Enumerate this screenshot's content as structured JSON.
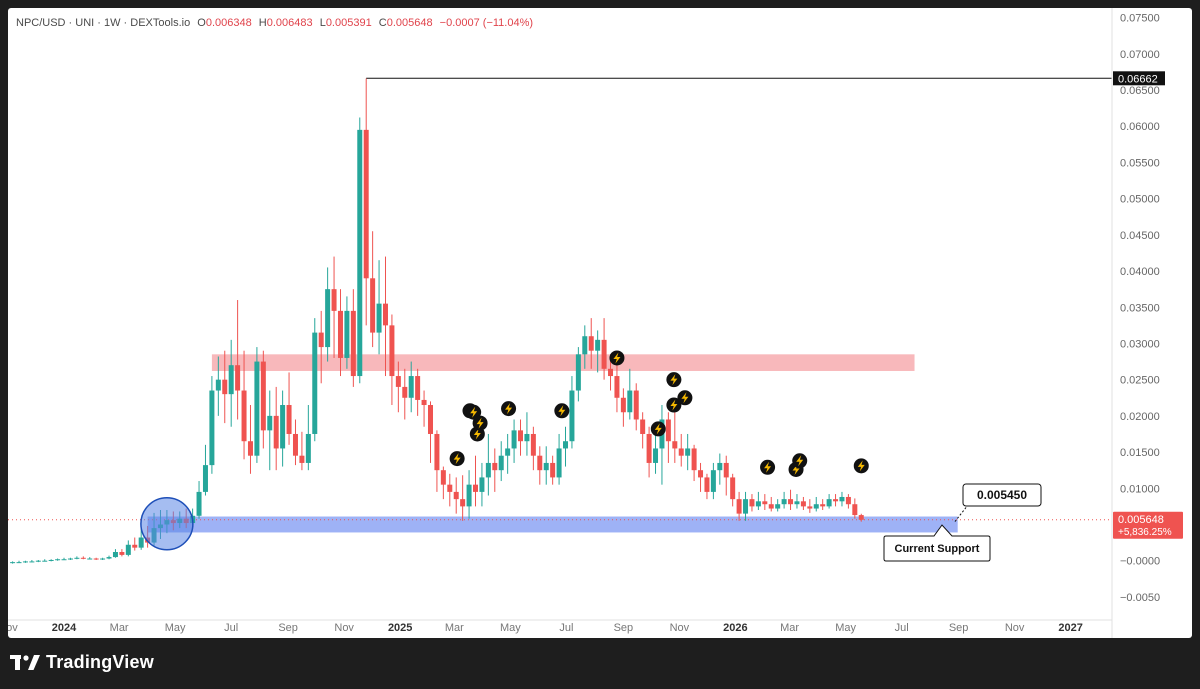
{
  "legend": {
    "symbol": "NPC/USD · UNI · 1W · DEXTools.io",
    "open_label": "O",
    "open": "0.006348",
    "high_label": "H",
    "high": "0.006483",
    "low_label": "L",
    "low": "0.005391",
    "close_label": "C",
    "close": "0.005648",
    "change": "−0.0007 (−11.04%)"
  },
  "brand": {
    "name": "TradingView",
    "logo_text": "TV"
  },
  "colors": {
    "up": "#26a69a",
    "down": "#ef5350",
    "resistance_zone": "#f7b0b4",
    "support_zone": "#93aaf5",
    "circle": "#5b86e5"
  },
  "chart_data": {
    "type": "candlestick",
    "interval": "1W",
    "y_scale": "linear",
    "ylim": [
      -0.0075,
      0.0755
    ],
    "y_ticks": [
      "0.07500",
      "0.07000",
      "0.06500",
      "0.06000",
      "0.05500",
      "0.05000",
      "0.04500",
      "0.04000",
      "0.03500",
      "0.03000",
      "0.02500",
      "0.02000",
      "0.01500",
      "0.01000",
      "−0.0000",
      "−0.0050"
    ],
    "y_tick_values": [
      0.075,
      0.07,
      0.065,
      0.06,
      0.055,
      0.05,
      0.045,
      0.04,
      0.035,
      0.03,
      0.025,
      0.02,
      0.015,
      0.01,
      0.0,
      -0.005
    ],
    "x_start_date": "2023-11-01",
    "x_end_date": "2027-02-15",
    "x_ticks": [
      {
        "label": "Nov",
        "date": "2023-11-01"
      },
      {
        "label": "2024",
        "date": "2024-01-01"
      },
      {
        "label": "Mar",
        "date": "2024-03-01"
      },
      {
        "label": "May",
        "date": "2024-05-01"
      },
      {
        "label": "Jul",
        "date": "2024-07-01"
      },
      {
        "label": "Sep",
        "date": "2024-09-01"
      },
      {
        "label": "Nov",
        "date": "2024-11-01"
      },
      {
        "label": "2025",
        "date": "2025-01-01"
      },
      {
        "label": "Mar",
        "date": "2025-03-01"
      },
      {
        "label": "May",
        "date": "2025-05-01"
      },
      {
        "label": "Jul",
        "date": "2025-07-01"
      },
      {
        "label": "Sep",
        "date": "2025-09-01"
      },
      {
        "label": "Nov",
        "date": "2025-11-01"
      },
      {
        "label": "2026",
        "date": "2026-01-01"
      },
      {
        "label": "Mar",
        "date": "2026-03-01"
      },
      {
        "label": "May",
        "date": "2026-05-01"
      },
      {
        "label": "Jul",
        "date": "2026-07-01"
      },
      {
        "label": "Sep",
        "date": "2026-09-01"
      },
      {
        "label": "Nov",
        "date": "2026-11-01"
      },
      {
        "label": "2027",
        "date": "2027-01-01"
      }
    ],
    "candles": [
      [
        "2023-11-06",
        -0.0003,
        -0.0002,
        -0.0001,
        -0.0004
      ],
      [
        "2023-11-13",
        -0.0002,
        -0.0002,
        0.0,
        -0.0003
      ],
      [
        "2023-11-20",
        -0.0002,
        -0.0001,
        0.0,
        -0.0003
      ],
      [
        "2023-11-27",
        -0.0001,
        -0.0001,
        0.0001,
        -0.0002
      ],
      [
        "2023-12-04",
        -0.0001,
        0.0,
        0.0001,
        -0.0002
      ],
      [
        "2023-12-11",
        0.0,
        0.0,
        0.0002,
        -0.0001
      ],
      [
        "2023-12-18",
        0.0,
        0.0001,
        0.0002,
        -0.0001
      ],
      [
        "2023-12-25",
        0.0001,
        0.0002,
        0.0003,
        0.0
      ],
      [
        "2024-01-01",
        0.0002,
        0.0002,
        0.0004,
        0.0001
      ],
      [
        "2024-01-08",
        0.0002,
        0.0003,
        0.0004,
        0.0001
      ],
      [
        "2024-01-15",
        0.0003,
        0.0004,
        0.0006,
        0.0002
      ],
      [
        "2024-01-22",
        0.0004,
        0.0003,
        0.0006,
        0.0002
      ],
      [
        "2024-01-29",
        0.0003,
        0.0003,
        0.0005,
        0.0002
      ],
      [
        "2024-02-05",
        0.0003,
        0.0002,
        0.0004,
        0.0001
      ],
      [
        "2024-02-12",
        0.0002,
        0.0003,
        0.0004,
        0.0001
      ],
      [
        "2024-02-19",
        0.0003,
        0.0005,
        0.0007,
        0.0002
      ],
      [
        "2024-02-26",
        0.0005,
        0.0012,
        0.0016,
        0.0004
      ],
      [
        "2024-03-04",
        0.0012,
        0.0008,
        0.0016,
        0.0006
      ],
      [
        "2024-03-11",
        0.0008,
        0.0022,
        0.0028,
        0.0006
      ],
      [
        "2024-03-18",
        0.0022,
        0.0018,
        0.0032,
        0.0014
      ],
      [
        "2024-03-25",
        0.0018,
        0.0032,
        0.0045,
        0.0015
      ],
      [
        "2024-04-01",
        0.0032,
        0.0025,
        0.0048,
        0.0018
      ],
      [
        "2024-04-08",
        0.0025,
        0.0045,
        0.0066,
        0.002
      ],
      [
        "2024-04-15",
        0.0045,
        0.005,
        0.007,
        0.003
      ],
      [
        "2024-04-22",
        0.005,
        0.0056,
        0.007,
        0.0038
      ],
      [
        "2024-04-29",
        0.0056,
        0.0052,
        0.0068,
        0.0042
      ],
      [
        "2024-05-06",
        0.0052,
        0.0058,
        0.0068,
        0.0045
      ],
      [
        "2024-05-13",
        0.0058,
        0.0052,
        0.0072,
        0.0045
      ],
      [
        "2024-05-20",
        0.0052,
        0.0062,
        0.0072,
        0.005
      ],
      [
        "2024-05-27",
        0.0062,
        0.0095,
        0.011,
        0.0058
      ],
      [
        "2024-06-03",
        0.0095,
        0.0132,
        0.016,
        0.009
      ],
      [
        "2024-06-10",
        0.0132,
        0.0235,
        0.0255,
        0.012
      ],
      [
        "2024-06-17",
        0.0235,
        0.025,
        0.0282,
        0.02
      ],
      [
        "2024-06-24",
        0.025,
        0.023,
        0.029,
        0.019
      ],
      [
        "2024-07-01",
        0.023,
        0.027,
        0.0305,
        0.0185
      ],
      [
        "2024-07-08",
        0.027,
        0.0235,
        0.036,
        0.0195
      ],
      [
        "2024-07-15",
        0.0235,
        0.0165,
        0.029,
        0.014
      ],
      [
        "2024-07-22",
        0.0165,
        0.0145,
        0.0215,
        0.012
      ],
      [
        "2024-07-29",
        0.0145,
        0.0275,
        0.0295,
        0.0135
      ],
      [
        "2024-08-05",
        0.0275,
        0.018,
        0.029,
        0.0155
      ],
      [
        "2024-08-12",
        0.018,
        0.02,
        0.0235,
        0.0125
      ],
      [
        "2024-08-19",
        0.02,
        0.0155,
        0.024,
        0.0125
      ],
      [
        "2024-08-26",
        0.0155,
        0.0215,
        0.0235,
        0.013
      ],
      [
        "2024-09-02",
        0.0215,
        0.0175,
        0.026,
        0.016
      ],
      [
        "2024-09-09",
        0.0175,
        0.0145,
        0.0195,
        0.0132
      ],
      [
        "2024-09-16",
        0.0145,
        0.0135,
        0.0178,
        0.0125
      ],
      [
        "2024-09-23",
        0.0135,
        0.0175,
        0.0215,
        0.0125
      ],
      [
        "2024-09-30",
        0.0175,
        0.0315,
        0.0335,
        0.0165
      ],
      [
        "2024-10-07",
        0.0315,
        0.0295,
        0.0345,
        0.0245
      ],
      [
        "2024-10-14",
        0.0295,
        0.0375,
        0.0405,
        0.0275
      ],
      [
        "2024-10-21",
        0.0375,
        0.0345,
        0.042,
        0.028
      ],
      [
        "2024-10-28",
        0.0345,
        0.028,
        0.0375,
        0.0255
      ],
      [
        "2024-11-04",
        0.028,
        0.0345,
        0.0365,
        0.0265
      ],
      [
        "2024-11-11",
        0.0345,
        0.0255,
        0.0375,
        0.024
      ],
      [
        "2024-11-18",
        0.0255,
        0.0595,
        0.0612,
        0.0245
      ],
      [
        "2024-11-25",
        0.0595,
        0.039,
        0.0666,
        0.0325
      ],
      [
        "2024-12-02",
        0.039,
        0.0315,
        0.0455,
        0.0295
      ],
      [
        "2024-12-09",
        0.0315,
        0.0355,
        0.0415,
        0.0285
      ],
      [
        "2024-12-16",
        0.0355,
        0.0325,
        0.042,
        0.0255
      ],
      [
        "2024-12-23",
        0.0325,
        0.0255,
        0.034,
        0.0215
      ],
      [
        "2024-12-30",
        0.0255,
        0.024,
        0.0275,
        0.0205
      ],
      [
        "2025-01-06",
        0.024,
        0.0225,
        0.0265,
        0.0195
      ],
      [
        "2025-01-13",
        0.0225,
        0.0255,
        0.0275,
        0.0205
      ],
      [
        "2025-01-20",
        0.0255,
        0.0222,
        0.0265,
        0.02
      ],
      [
        "2025-01-27",
        0.0222,
        0.0215,
        0.0235,
        0.0185
      ],
      [
        "2025-02-03",
        0.0215,
        0.0175,
        0.022,
        0.0135
      ],
      [
        "2025-02-10",
        0.0175,
        0.0125,
        0.018,
        0.0095
      ],
      [
        "2025-02-17",
        0.0125,
        0.0105,
        0.013,
        0.0085
      ],
      [
        "2025-02-24",
        0.0105,
        0.0095,
        0.012,
        0.0075
      ],
      [
        "2025-03-03",
        0.0095,
        0.0085,
        0.0115,
        0.0065
      ],
      [
        "2025-03-10",
        0.0085,
        0.0075,
        0.0118,
        0.0055
      ],
      [
        "2025-03-17",
        0.0075,
        0.0105,
        0.0125,
        0.0058
      ],
      [
        "2025-03-24",
        0.0105,
        0.0095,
        0.0145,
        0.0075
      ],
      [
        "2025-03-31",
        0.0095,
        0.0115,
        0.0135,
        0.0075
      ],
      [
        "2025-04-07",
        0.0115,
        0.0135,
        0.0175,
        0.009
      ],
      [
        "2025-04-14",
        0.0135,
        0.0125,
        0.0155,
        0.0095
      ],
      [
        "2025-04-21",
        0.0125,
        0.0145,
        0.0165,
        0.011
      ],
      [
        "2025-04-28",
        0.0145,
        0.0155,
        0.0175,
        0.012
      ],
      [
        "2025-05-05",
        0.0155,
        0.018,
        0.0195,
        0.0135
      ],
      [
        "2025-05-12",
        0.018,
        0.0165,
        0.0195,
        0.0145
      ],
      [
        "2025-05-19",
        0.0165,
        0.0175,
        0.0205,
        0.0145
      ],
      [
        "2025-05-26",
        0.0175,
        0.0145,
        0.0185,
        0.0125
      ],
      [
        "2025-06-02",
        0.0145,
        0.0125,
        0.0158,
        0.0105
      ],
      [
        "2025-06-09",
        0.0125,
        0.0135,
        0.0158,
        0.0105
      ],
      [
        "2025-06-16",
        0.0135,
        0.0115,
        0.0145,
        0.0105
      ],
      [
        "2025-06-23",
        0.0115,
        0.0155,
        0.0175,
        0.0105
      ],
      [
        "2025-06-30",
        0.0155,
        0.0165,
        0.0185,
        0.013
      ],
      [
        "2025-07-07",
        0.0165,
        0.0235,
        0.0255,
        0.0155
      ],
      [
        "2025-07-14",
        0.0235,
        0.0285,
        0.0295,
        0.022
      ],
      [
        "2025-07-21",
        0.0285,
        0.031,
        0.0325,
        0.0265
      ],
      [
        "2025-07-28",
        0.031,
        0.029,
        0.0335,
        0.0265
      ],
      [
        "2025-08-04",
        0.029,
        0.0305,
        0.0318,
        0.026
      ],
      [
        "2025-08-11",
        0.0305,
        0.0265,
        0.0335,
        0.025
      ],
      [
        "2025-08-18",
        0.0265,
        0.0255,
        0.0285,
        0.0235
      ],
      [
        "2025-08-25",
        0.0255,
        0.0225,
        0.0275,
        0.0205
      ],
      [
        "2025-09-01",
        0.0225,
        0.0205,
        0.0238,
        0.0185
      ],
      [
        "2025-09-08",
        0.0205,
        0.0235,
        0.0265,
        0.0195
      ],
      [
        "2025-09-15",
        0.0235,
        0.0195,
        0.0245,
        0.018
      ],
      [
        "2025-09-22",
        0.0195,
        0.0175,
        0.0205,
        0.0155
      ],
      [
        "2025-09-29",
        0.0175,
        0.0135,
        0.0185,
        0.0115
      ],
      [
        "2025-10-06",
        0.0135,
        0.0155,
        0.0175,
        0.012
      ],
      [
        "2025-10-13",
        0.0155,
        0.0195,
        0.0215,
        0.0105
      ],
      [
        "2025-10-20",
        0.0195,
        0.0165,
        0.0205,
        0.0135
      ],
      [
        "2025-10-27",
        0.0165,
        0.0155,
        0.0205,
        0.0135
      ],
      [
        "2025-11-03",
        0.0155,
        0.0145,
        0.0175,
        0.013
      ],
      [
        "2025-11-10",
        0.0145,
        0.0155,
        0.0175,
        0.0125
      ],
      [
        "2025-11-17",
        0.0155,
        0.0125,
        0.016,
        0.011
      ],
      [
        "2025-11-24",
        0.0125,
        0.0115,
        0.0135,
        0.0095
      ],
      [
        "2025-12-01",
        0.0115,
        0.0095,
        0.012,
        0.0085
      ],
      [
        "2025-12-08",
        0.0095,
        0.0125,
        0.0135,
        0.0085
      ],
      [
        "2025-12-15",
        0.0125,
        0.0135,
        0.0148,
        0.0105
      ],
      [
        "2025-12-22",
        0.0135,
        0.0115,
        0.0145,
        0.009
      ],
      [
        "2025-12-29",
        0.0115,
        0.0085,
        0.012,
        0.0075
      ],
      [
        "2026-01-05",
        0.0085,
        0.0065,
        0.0095,
        0.0055
      ],
      [
        "2026-01-12",
        0.0065,
        0.0085,
        0.0095,
        0.0055
      ],
      [
        "2026-01-19",
        0.0085,
        0.0075,
        0.0092,
        0.0068
      ],
      [
        "2026-01-26",
        0.0075,
        0.0082,
        0.0095,
        0.007
      ],
      [
        "2026-02-02",
        0.0082,
        0.0078,
        0.0092,
        0.007
      ],
      [
        "2026-02-09",
        0.0078,
        0.0072,
        0.0088,
        0.0068
      ],
      [
        "2026-02-16",
        0.0072,
        0.0078,
        0.0085,
        0.0068
      ],
      [
        "2026-02-23",
        0.0078,
        0.0085,
        0.0095,
        0.0072
      ],
      [
        "2026-03-02",
        0.0085,
        0.0078,
        0.0098,
        0.007
      ],
      [
        "2026-03-09",
        0.0078,
        0.0082,
        0.0092,
        0.0072
      ],
      [
        "2026-03-16",
        0.0082,
        0.0075,
        0.0088,
        0.007
      ],
      [
        "2026-03-23",
        0.0075,
        0.0072,
        0.0085,
        0.0066
      ],
      [
        "2026-03-30",
        0.0072,
        0.0078,
        0.0088,
        0.0068
      ],
      [
        "2026-04-06",
        0.0078,
        0.0075,
        0.0085,
        0.007
      ],
      [
        "2026-04-13",
        0.0075,
        0.0085,
        0.0092,
        0.0072
      ],
      [
        "2026-04-20",
        0.0085,
        0.0082,
        0.0092,
        0.0075
      ],
      [
        "2026-04-27",
        0.0082,
        0.0088,
        0.0095,
        0.0075
      ],
      [
        "2026-05-04",
        0.0088,
        0.0078,
        0.0092,
        0.0072
      ],
      [
        "2026-05-11",
        0.0078,
        0.0063,
        0.0086,
        0.0058
      ],
      [
        "2026-05-18",
        0.0063,
        0.00565,
        0.00648,
        0.00539
      ]
    ],
    "zones": [
      {
        "name": "resistance",
        "from": "2024-06-10",
        "to": "2026-07-15",
        "low": 0.0262,
        "high": 0.0285
      },
      {
        "name": "support",
        "from": "2024-04-01",
        "to": "2026-08-31",
        "low": 0.0039,
        "high": 0.0061
      }
    ],
    "highlight_circle": {
      "date": "2024-04-22",
      "price": 0.0051
    },
    "high_line": {
      "from": "2024-11-25",
      "value": 0.06662,
      "label": "0.06662"
    },
    "last_price_line": 0.005648,
    "price_badge": {
      "value": "0.005648",
      "change": "+5,836.25%"
    },
    "callout_value": {
      "text": "0.005450",
      "anchor_date": "2026-08-28",
      "anchor_price": 0.0054
    },
    "callout_support": {
      "text": "Current Support"
    },
    "bolt_markers": [
      [
        "2025-03-04",
        0.0141
      ],
      [
        "2025-03-18",
        0.0207
      ],
      [
        "2025-03-22",
        0.0205
      ],
      [
        "2025-03-26",
        0.0175
      ],
      [
        "2025-03-29",
        0.019
      ],
      [
        "2025-04-29",
        0.021
      ],
      [
        "2025-06-26",
        0.0207
      ],
      [
        "2025-08-25",
        0.028
      ],
      [
        "2025-10-09",
        0.0182
      ],
      [
        "2025-10-26",
        0.025
      ],
      [
        "2025-10-26",
        0.0215
      ],
      [
        "2025-11-07",
        0.0225
      ],
      [
        "2026-02-05",
        0.0129
      ],
      [
        "2026-03-08",
        0.0126
      ],
      [
        "2026-03-12",
        0.0138
      ],
      [
        "2026-05-18",
        0.0131
      ]
    ]
  }
}
